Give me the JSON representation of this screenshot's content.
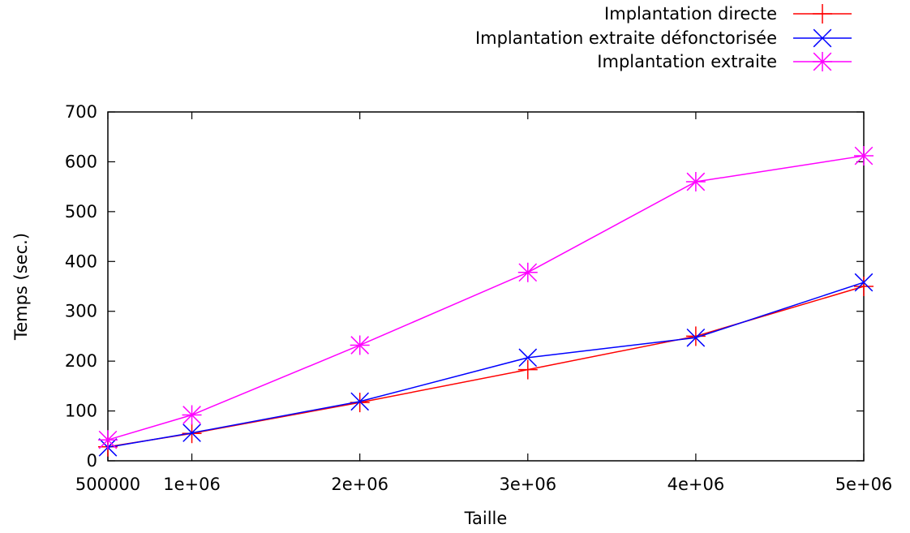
{
  "chart_data": {
    "type": "line",
    "xlabel": "Taille",
    "ylabel": "Temps (sec.)",
    "xlim": [
      500000,
      5000000
    ],
    "ylim": [
      0,
      700
    ],
    "x_ticks": [
      500000,
      1000000,
      2000000,
      3000000,
      4000000,
      5000000
    ],
    "x_tick_labels": [
      "500000",
      "1e+06",
      "2e+06",
      "3e+06",
      "4e+06",
      "5e+06"
    ],
    "y_ticks": [
      0,
      100,
      200,
      300,
      400,
      500,
      600,
      700
    ],
    "y_tick_labels": [
      "0",
      "100",
      "200",
      "300",
      "400",
      "500",
      "600",
      "700"
    ],
    "grid": false,
    "legend_position": "top-right, outside plot area",
    "x": [
      500000,
      1000000,
      2000000,
      3000000,
      4000000,
      5000000
    ],
    "series": [
      {
        "name": "Implantation directe",
        "color": "#ff0000",
        "marker": "plus",
        "values": [
          28,
          55,
          117,
          183,
          250,
          350
        ]
      },
      {
        "name": "Implantation extraite défonctorisée",
        "color": "#0000ff",
        "marker": "cross",
        "values": [
          27,
          56,
          119,
          207,
          247,
          358
        ]
      },
      {
        "name": "Implantation extraite",
        "color": "#ff00ff",
        "marker": "star",
        "values": [
          42,
          92,
          232,
          378,
          560,
          612
        ]
      }
    ]
  }
}
